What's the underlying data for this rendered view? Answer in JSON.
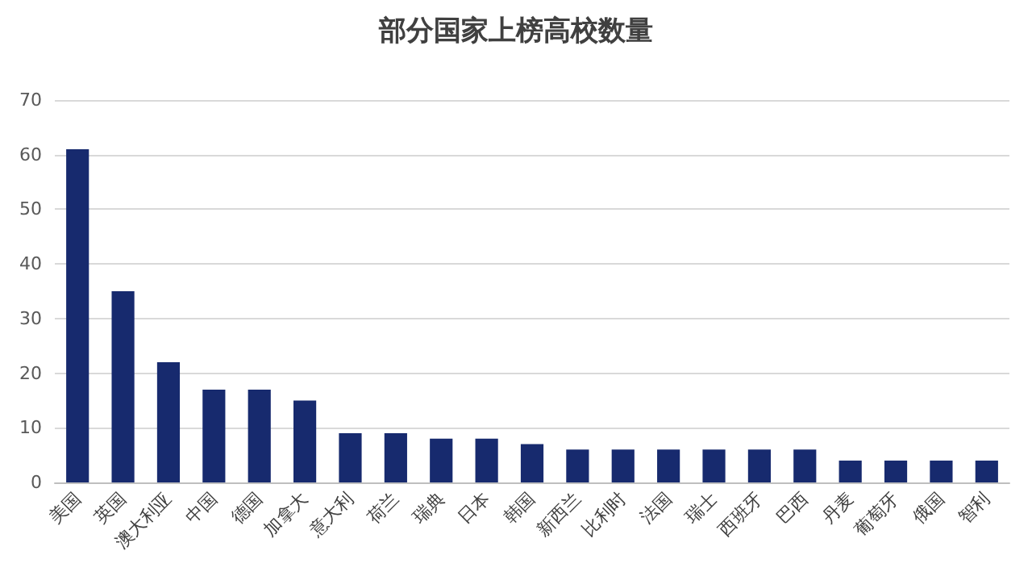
{
  "chart_data": {
    "type": "bar",
    "title": "部分国家上榜高校数量",
    "categories": [
      "美国",
      "英国",
      "澳大利亚",
      "中国",
      "德国",
      "加拿大",
      "意大利",
      "荷兰",
      "瑞典",
      "日本",
      "韩国",
      "新西兰",
      "比利时",
      "法国",
      "瑞士",
      "西班牙",
      "巴西",
      "丹麦",
      "葡萄牙",
      "俄国",
      "智利"
    ],
    "values": [
      61,
      35,
      22,
      17,
      17,
      15,
      9,
      9,
      8,
      8,
      7,
      6,
      6,
      6,
      6,
      6,
      6,
      4,
      4,
      4,
      4
    ],
    "color": "#172a6e",
    "ylim": [
      0,
      70
    ],
    "yticks": [
      0,
      10,
      20,
      30,
      40,
      50,
      60,
      70
    ],
    "grid": "y"
  }
}
